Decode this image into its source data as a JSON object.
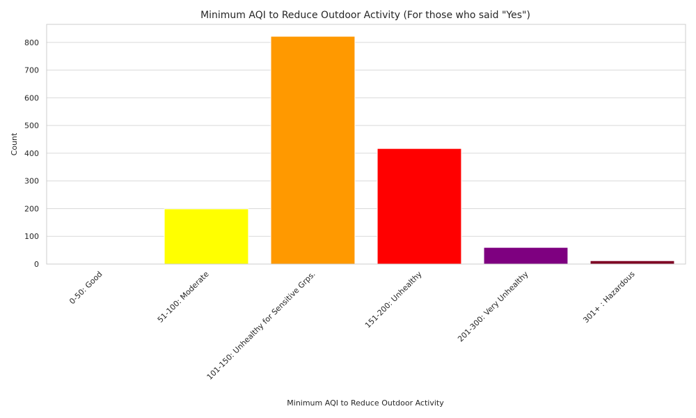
{
  "chart_data": {
    "type": "bar",
    "title": "Minimum AQI to Reduce Outdoor Activity (For those who said \"Yes\")",
    "xlabel": "Minimum AQI to Reduce Outdoor Activity",
    "ylabel": "Count",
    "categories": [
      "0-50: Good",
      "51-100: Moderate",
      "101-150: Unhealthy for Sensitive Grps.",
      "151-200: Unhealthy",
      "201-300: Very Unhealthy",
      "301+ : Hazardous"
    ],
    "values": [
      0,
      199,
      822,
      417,
      60,
      12
    ],
    "colors": [
      "#00e400",
      "#ffff00",
      "#ff9900",
      "#ff0000",
      "#7e0080",
      "#7e0023"
    ],
    "ylim": [
      0,
      865
    ],
    "yticks": [
      0,
      100,
      200,
      300,
      400,
      500,
      600,
      700,
      800
    ],
    "grid": true,
    "legend": "none"
  }
}
